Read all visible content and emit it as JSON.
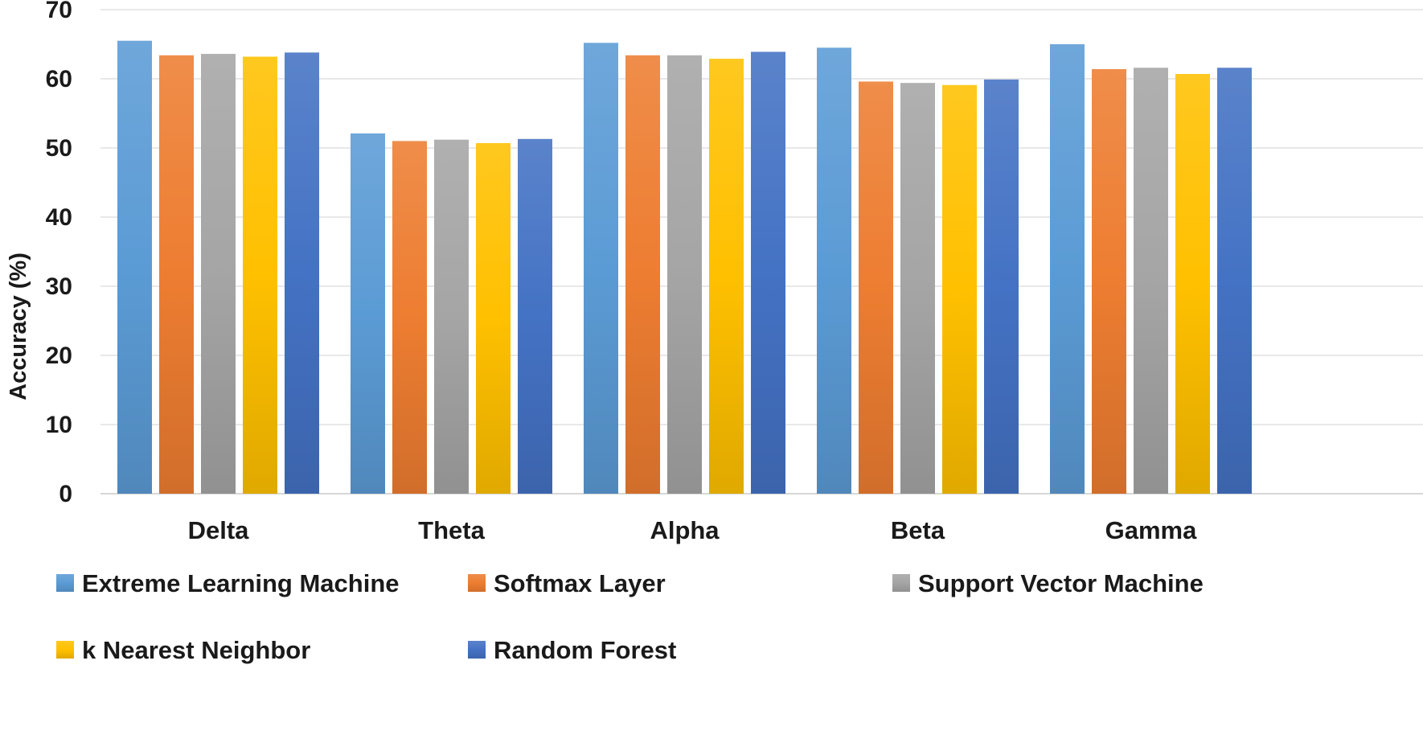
{
  "chart_data": {
    "type": "bar",
    "title": "",
    "xlabel": "",
    "ylabel": "Accuracy (%)",
    "ylim": [
      0,
      70
    ],
    "yticks": [
      0,
      10,
      20,
      30,
      40,
      50,
      60,
      70
    ],
    "grid": true,
    "legend_position": "bottom",
    "categories": [
      "Delta",
      "Theta",
      "Alpha",
      "Beta",
      "Gamma"
    ],
    "series": [
      {
        "name": "Extreme Learning Machine",
        "color": "#5B9BD5",
        "values": [
          65.5,
          52.1,
          65.2,
          64.5,
          65.0
        ]
      },
      {
        "name": "Softmax Layer",
        "color": "#ED7D31",
        "values": [
          63.4,
          51.0,
          63.4,
          59.6,
          61.4
        ]
      },
      {
        "name": "Support Vector Machine",
        "color": "#A5A5A5",
        "values": [
          63.6,
          51.2,
          63.4,
          59.4,
          61.6
        ]
      },
      {
        "name": "k Nearest Neighbor",
        "color": "#FFC000",
        "values": [
          63.2,
          50.7,
          62.9,
          59.1,
          60.7
        ]
      },
      {
        "name": "Random Forest",
        "color": "#4472C4",
        "values": [
          63.8,
          51.3,
          63.9,
          59.9,
          61.6
        ]
      }
    ]
  }
}
